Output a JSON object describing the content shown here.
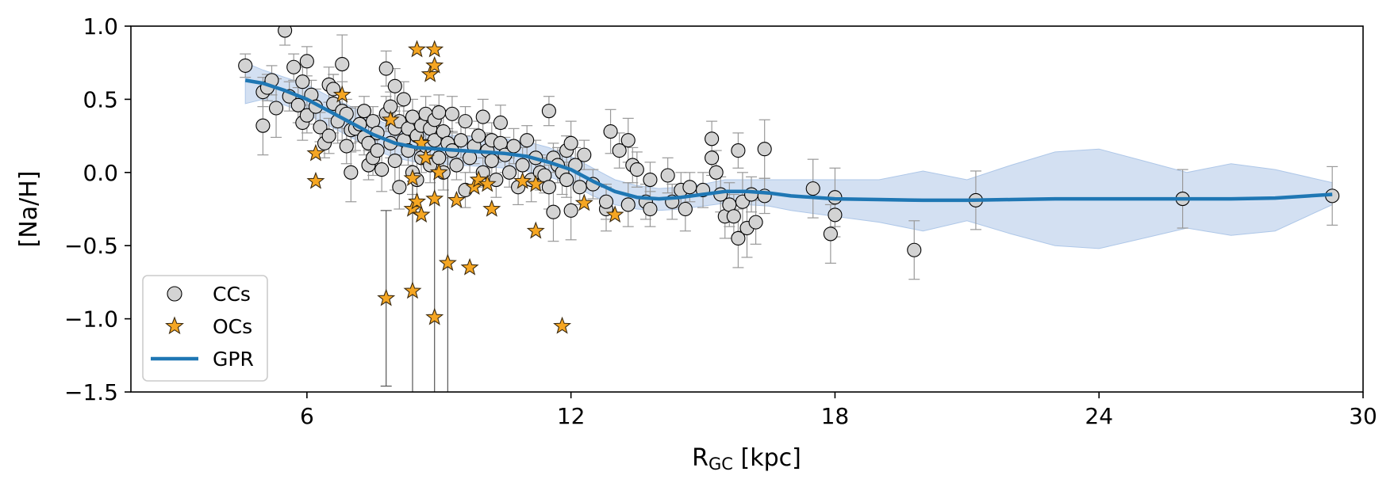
{
  "chart_data": {
    "type": "scatter",
    "xlabel_main": "R",
    "xlabel_sub": "GC",
    "xlabel_unit": " [kpc]",
    "ylabel": "[Na/H]",
    "xlim": [
      2,
      30
    ],
    "ylim": [
      -1.5,
      1.0
    ],
    "xticks": [
      6,
      12,
      18,
      24,
      30
    ],
    "yticks": [
      -1.5,
      -1.0,
      -0.5,
      0.0,
      0.5,
      1.0
    ],
    "ytick_labels": [
      "−1.5",
      "−1.0",
      "−0.5",
      "0.0",
      "0.5",
      "1.0"
    ],
    "grid": false,
    "legend_position": "lower-left",
    "colors": {
      "cc_fill": "#d3d3d3",
      "cc_edge": "#000000",
      "oc_fill": "#f5a623",
      "oc_edge": "#3a2a10",
      "gpr_line": "#1f77b4",
      "gpr_band": "#aec7e8",
      "cc_err": "#999999",
      "oc_err": "#555555"
    },
    "series": [
      {
        "name": "CCs",
        "marker": "circle",
        "points": [
          [
            4.6,
            0.73,
            0.08
          ],
          [
            5.0,
            0.32,
            0.2
          ],
          [
            5.0,
            0.55,
            0.1
          ],
          [
            5.1,
            0.58,
            0.09
          ],
          [
            5.2,
            0.63,
            0.1
          ],
          [
            5.3,
            0.44,
            0.2
          ],
          [
            5.5,
            0.97,
            0.1
          ],
          [
            5.6,
            0.52,
            0.1
          ],
          [
            5.7,
            0.72,
            0.09
          ],
          [
            5.8,
            0.46,
            0.12
          ],
          [
            5.9,
            0.62,
            0.1
          ],
          [
            5.9,
            0.34,
            0.12
          ],
          [
            6.0,
            0.76,
            0.1
          ],
          [
            6.0,
            0.39,
            0.12
          ],
          [
            6.1,
            0.53,
            0.1
          ],
          [
            6.2,
            0.45,
            0.12
          ],
          [
            6.3,
            0.31,
            0.1
          ],
          [
            6.4,
            0.2,
            0.1
          ],
          [
            6.5,
            0.6,
            0.12
          ],
          [
            6.5,
            0.25,
            0.12
          ],
          [
            6.6,
            0.47,
            0.2
          ],
          [
            6.6,
            0.57,
            0.1
          ],
          [
            6.7,
            0.35,
            0.15
          ],
          [
            6.8,
            0.74,
            0.2
          ],
          [
            6.8,
            0.42,
            0.2
          ],
          [
            6.9,
            0.4,
            0.1
          ],
          [
            6.9,
            0.18,
            0.12
          ],
          [
            7.0,
            0.0,
            0.2
          ],
          [
            7.0,
            0.29,
            0.15
          ],
          [
            7.1,
            0.3,
            0.15
          ],
          [
            7.2,
            0.33,
            0.12
          ],
          [
            7.3,
            0.24,
            0.12
          ],
          [
            7.3,
            0.42,
            0.1
          ],
          [
            7.4,
            0.2,
            0.12
          ],
          [
            7.4,
            0.05,
            0.1
          ],
          [
            7.5,
            0.1,
            0.12
          ],
          [
            7.5,
            0.35,
            0.1
          ],
          [
            7.6,
            0.27,
            0.12
          ],
          [
            7.6,
            0.15,
            0.1
          ],
          [
            7.7,
            0.02,
            0.15
          ],
          [
            7.8,
            0.71,
            0.12
          ],
          [
            7.8,
            0.4,
            0.12
          ],
          [
            7.9,
            0.2,
            0.1
          ],
          [
            7.9,
            0.45,
            0.1
          ],
          [
            8.0,
            0.3,
            0.12
          ],
          [
            8.0,
            0.08,
            0.2
          ],
          [
            8.0,
            0.59,
            0.12
          ],
          [
            8.1,
            -0.1,
            0.15
          ],
          [
            8.1,
            0.35,
            0.1
          ],
          [
            8.2,
            0.5,
            0.12
          ],
          [
            8.2,
            0.22,
            0.1
          ],
          [
            8.3,
            0.15,
            0.1
          ],
          [
            8.3,
            0.3,
            0.12
          ],
          [
            8.4,
            0.0,
            0.15
          ],
          [
            8.4,
            0.38,
            0.12
          ],
          [
            8.5,
            0.25,
            0.1
          ],
          [
            8.5,
            -0.05,
            0.2
          ],
          [
            8.6,
            0.1,
            0.1
          ],
          [
            8.6,
            0.32,
            0.1
          ],
          [
            8.7,
            0.4,
            0.12
          ],
          [
            8.7,
            0.18,
            0.1
          ],
          [
            8.8,
            0.3,
            0.12
          ],
          [
            8.8,
            0.05,
            0.12
          ],
          [
            8.9,
            0.22,
            0.1
          ],
          [
            8.9,
            0.36,
            0.1
          ],
          [
            9.0,
            0.41,
            0.12
          ],
          [
            9.0,
            0.1,
            0.1
          ],
          [
            9.1,
            0.28,
            0.12
          ],
          [
            9.1,
            0.0,
            0.12
          ],
          [
            9.2,
            0.2,
            0.1
          ],
          [
            9.3,
            0.15,
            0.12
          ],
          [
            9.3,
            0.4,
            0.12
          ],
          [
            9.4,
            0.05,
            0.1
          ],
          [
            9.5,
            0.22,
            0.12
          ],
          [
            9.6,
            0.35,
            0.1
          ],
          [
            9.6,
            -0.12,
            0.12
          ],
          [
            9.7,
            0.1,
            0.1
          ],
          [
            9.8,
            0.18,
            0.12
          ],
          [
            9.9,
            0.25,
            0.1
          ],
          [
            10.0,
            0.0,
            0.1
          ],
          [
            10.0,
            0.38,
            0.12
          ],
          [
            10.1,
            0.15,
            0.12
          ],
          [
            10.2,
            0.08,
            0.1
          ],
          [
            10.2,
            0.22,
            0.12
          ],
          [
            10.3,
            -0.05,
            0.12
          ],
          [
            10.4,
            0.2,
            0.1
          ],
          [
            10.4,
            0.34,
            0.12
          ],
          [
            10.5,
            0.12,
            0.12
          ],
          [
            10.6,
            0.0,
            0.1
          ],
          [
            10.7,
            0.18,
            0.12
          ],
          [
            10.8,
            -0.1,
            0.12
          ],
          [
            10.9,
            0.05,
            0.12
          ],
          [
            11.0,
            0.22,
            0.1
          ],
          [
            11.1,
            -0.05,
            0.15
          ],
          [
            11.2,
            0.1,
            0.12
          ],
          [
            11.3,
            0.0,
            0.12
          ],
          [
            11.4,
            -0.02,
            0.12
          ],
          [
            11.5,
            0.42,
            0.1
          ],
          [
            11.5,
            -0.1,
            0.15
          ],
          [
            11.6,
            0.1,
            0.1
          ],
          [
            11.6,
            -0.27,
            0.2
          ],
          [
            11.7,
            0.05,
            0.12
          ],
          [
            11.8,
            0.0,
            0.15
          ],
          [
            11.9,
            -0.05,
            0.12
          ],
          [
            11.9,
            0.15,
            0.1
          ],
          [
            12.0,
            0.2,
            0.15
          ],
          [
            12.0,
            -0.26,
            0.2
          ],
          [
            12.1,
            0.05,
            0.12
          ],
          [
            12.2,
            -0.1,
            0.12
          ],
          [
            12.3,
            0.12,
            0.1
          ],
          [
            12.5,
            -0.08,
            0.1
          ],
          [
            12.8,
            -0.25,
            0.15
          ],
          [
            12.8,
            -0.2,
            0.12
          ],
          [
            12.9,
            0.28,
            0.15
          ],
          [
            13.1,
            0.15,
            0.12
          ],
          [
            13.3,
            0.22,
            0.15
          ],
          [
            13.3,
            -0.22,
            0.15
          ],
          [
            13.4,
            0.05,
            0.12
          ],
          [
            13.5,
            0.02,
            0.12
          ],
          [
            13.7,
            -0.2,
            0.12
          ],
          [
            13.8,
            -0.25,
            0.12
          ],
          [
            13.8,
            -0.05,
            0.12
          ],
          [
            14.2,
            -0.02,
            0.12
          ],
          [
            14.3,
            -0.2,
            0.12
          ],
          [
            14.5,
            -0.12,
            0.12
          ],
          [
            14.6,
            -0.25,
            0.15
          ],
          [
            14.7,
            -0.1,
            0.1
          ],
          [
            15.0,
            -0.12,
            0.12
          ],
          [
            15.2,
            0.23,
            0.12
          ],
          [
            15.2,
            0.1,
            0.12
          ],
          [
            15.3,
            0.0,
            0.15
          ],
          [
            15.4,
            -0.15,
            0.12
          ],
          [
            15.5,
            -0.3,
            0.15
          ],
          [
            15.6,
            -0.22,
            0.15
          ],
          [
            15.7,
            -0.3,
            0.15
          ],
          [
            15.8,
            -0.45,
            0.2
          ],
          [
            15.8,
            0.15,
            0.12
          ],
          [
            15.9,
            -0.2,
            0.2
          ],
          [
            16.0,
            -0.38,
            0.2
          ],
          [
            16.1,
            -0.15,
            0.12
          ],
          [
            16.2,
            -0.34,
            0.15
          ],
          [
            16.4,
            0.16,
            0.2
          ],
          [
            16.4,
            -0.16,
            0.12
          ],
          [
            17.5,
            -0.11,
            0.2
          ],
          [
            17.9,
            -0.42,
            0.2
          ],
          [
            18.0,
            -0.29,
            0.15
          ],
          [
            18.0,
            -0.17,
            0.2
          ],
          [
            19.8,
            -0.53,
            0.2
          ],
          [
            21.2,
            -0.19,
            0.2
          ],
          [
            25.9,
            -0.18,
            0.2
          ],
          [
            29.3,
            -0.16,
            0.2
          ]
        ]
      },
      {
        "name": "OCs",
        "marker": "star",
        "points": [
          [
            6.2,
            0.13,
            0.05
          ],
          [
            6.2,
            -0.06,
            0.05
          ],
          [
            6.8,
            0.53,
            0.05
          ],
          [
            7.9,
            0.36,
            0.05
          ],
          [
            7.8,
            -0.86,
            0.6
          ],
          [
            8.4,
            -0.81,
            0.75
          ],
          [
            8.4,
            -0.04,
            0.05
          ],
          [
            8.4,
            -0.25,
            0.1
          ],
          [
            8.5,
            0.84,
            0.05
          ],
          [
            8.5,
            -0.2,
            0.1
          ],
          [
            8.6,
            0.2,
            0.05
          ],
          [
            8.6,
            -0.29,
            0.1
          ],
          [
            8.7,
            0.1,
            0.05
          ],
          [
            8.8,
            0.67,
            0.05
          ],
          [
            8.9,
            0.84,
            0.05
          ],
          [
            8.9,
            0.73,
            0.05
          ],
          [
            8.9,
            -0.99,
            1.0
          ],
          [
            8.9,
            -0.18,
            0.05
          ],
          [
            9.0,
            0.0,
            0.05
          ],
          [
            9.2,
            -0.62,
            0.9
          ],
          [
            9.4,
            -0.19,
            0.05
          ],
          [
            9.7,
            -0.65,
            0.05
          ],
          [
            9.8,
            -0.1,
            0.05
          ],
          [
            9.9,
            -0.05,
            0.05
          ],
          [
            10.1,
            -0.08,
            0.05
          ],
          [
            10.2,
            -0.25,
            0.05
          ],
          [
            10.9,
            -0.06,
            0.05
          ],
          [
            11.2,
            -0.4,
            0.05
          ],
          [
            11.2,
            -0.08,
            0.05
          ],
          [
            11.8,
            -1.05,
            0.05
          ],
          [
            12.3,
            -0.21,
            0.05
          ],
          [
            13.0,
            -0.29,
            0.05
          ]
        ]
      },
      {
        "name": "GPR",
        "type": "line",
        "x": [
          4.6,
          5.0,
          5.5,
          6.0,
          6.5,
          7.0,
          7.5,
          8.0,
          8.5,
          9.0,
          9.5,
          10.0,
          10.5,
          11.0,
          11.5,
          12.0,
          12.5,
          13.0,
          13.5,
          14.0,
          14.5,
          15.0,
          15.5,
          16.0,
          16.5,
          17.0,
          18.0,
          19.0,
          20.0,
          21.0,
          22.0,
          23.0,
          24.0,
          25.0,
          26.0,
          27.0,
          28.0,
          29.3
        ],
        "y": [
          0.63,
          0.61,
          0.56,
          0.5,
          0.42,
          0.34,
          0.26,
          0.2,
          0.17,
          0.16,
          0.15,
          0.14,
          0.13,
          0.11,
          0.07,
          0.02,
          -0.06,
          -0.13,
          -0.17,
          -0.18,
          -0.17,
          -0.15,
          -0.13,
          -0.13,
          -0.14,
          -0.16,
          -0.18,
          -0.185,
          -0.19,
          -0.19,
          -0.185,
          -0.18,
          -0.18,
          -0.18,
          -0.18,
          -0.18,
          -0.175,
          -0.15
        ],
        "band_upper": [
          0.75,
          0.7,
          0.65,
          0.6,
          0.52,
          0.45,
          0.37,
          0.31,
          0.28,
          0.26,
          0.25,
          0.24,
          0.23,
          0.21,
          0.17,
          0.11,
          0.03,
          -0.05,
          -0.09,
          -0.11,
          -0.1,
          -0.08,
          -0.05,
          -0.05,
          -0.05,
          -0.05,
          -0.05,
          -0.05,
          0.01,
          -0.05,
          0.05,
          0.14,
          0.16,
          0.08,
          0.0,
          0.06,
          0.02,
          -0.07
        ],
        "band_lower": [
          0.47,
          0.5,
          0.46,
          0.4,
          0.32,
          0.24,
          0.16,
          0.1,
          0.07,
          0.06,
          0.05,
          0.04,
          0.03,
          0.01,
          -0.03,
          -0.08,
          -0.16,
          -0.22,
          -0.25,
          -0.26,
          -0.25,
          -0.23,
          -0.21,
          -0.22,
          -0.23,
          -0.26,
          -0.3,
          -0.34,
          -0.4,
          -0.33,
          -0.42,
          -0.5,
          -0.52,
          -0.45,
          -0.38,
          -0.43,
          -0.4,
          -0.22
        ]
      }
    ]
  }
}
